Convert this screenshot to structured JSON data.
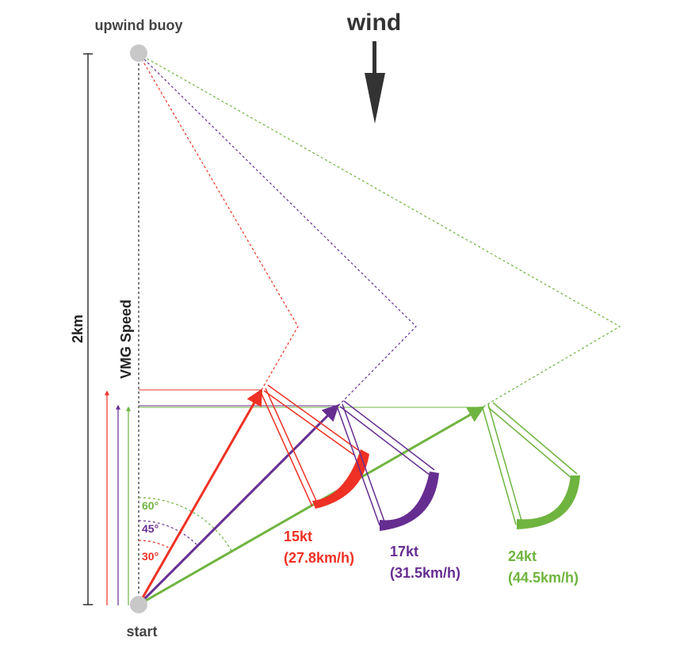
{
  "labels": {
    "upwind_buoy": "upwind buoy",
    "wind": "wind",
    "start": "start",
    "distance": "2km",
    "vmg_speed": "VMG Speed"
  },
  "colors": {
    "red": "#ee3124",
    "purple": "#662d91",
    "green": "#6fb43f",
    "buoy": "#c8c8c8",
    "dark": "#333333"
  },
  "boats": [
    {
      "key": "red",
      "color": "#ee3124",
      "angle_label": "30°",
      "speed_kt": "15kt",
      "speed_kmh": "(27.8km/h)"
    },
    {
      "key": "purple",
      "color": "#662d91",
      "angle_label": "45°",
      "speed_kt": "17kt",
      "speed_kmh": "(31.5km/h)"
    },
    {
      "key": "green",
      "color": "#6fb43f",
      "angle_label": "60°",
      "speed_kt": "24kt",
      "speed_kmh": "(44.5km/h)"
    }
  ]
}
